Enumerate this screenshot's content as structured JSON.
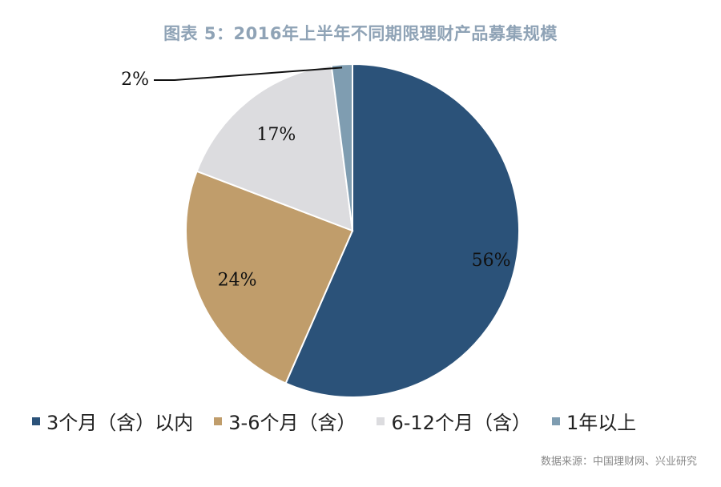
{
  "title": "图表 5：2016年上半年不同期限理财产品募集规模",
  "chart_data": {
    "type": "pie",
    "title": "图表 5：2016年上半年不同期限理财产品募集规模",
    "labels": [
      "3个月（含）以内",
      "3-6个月（含）",
      "6-12个月（含）",
      "1年以上"
    ],
    "values": [
      56,
      24,
      17,
      2
    ],
    "data_labels": [
      "56%",
      "24%",
      "17%",
      "2%"
    ],
    "colors": [
      "#2b5279",
      "#c09d6b",
      "#dcdcdf",
      "#7f9db1"
    ],
    "start": "12 o'clock",
    "direction": "clockwise",
    "legend_position": "bottom"
  },
  "source": "数据来源：中国理财网、兴业研究"
}
